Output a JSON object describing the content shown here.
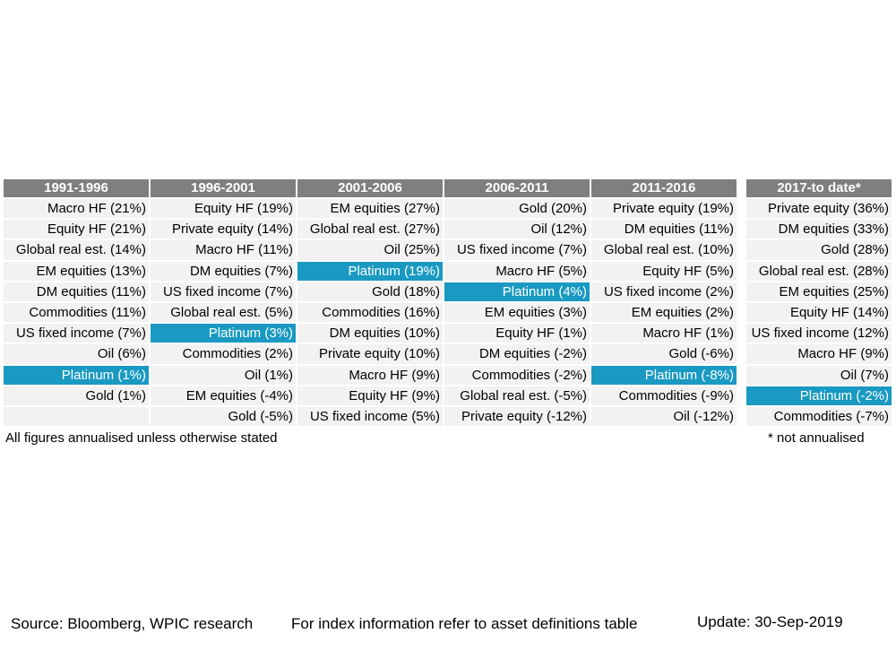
{
  "chart_data": {
    "type": "table",
    "highlight_color": "#1a9ac2",
    "header_color": "#7f7f7f",
    "highlight_asset": "Platinum",
    "columns": [
      {
        "header": "1991-1996",
        "rows": [
          {
            "label": "Macro HF (21%)",
            "asset": "Macro HF",
            "value": 21
          },
          {
            "label": "Equity HF (21%)",
            "asset": "Equity HF",
            "value": 21
          },
          {
            "label": "Global real est. (14%)",
            "asset": "Global real est.",
            "value": 14
          },
          {
            "label": "EM equities (13%)",
            "asset": "EM equities",
            "value": 13
          },
          {
            "label": "DM equities (11%)",
            "asset": "DM equities",
            "value": 11
          },
          {
            "label": "Commodities (11%)",
            "asset": "Commodities",
            "value": 11
          },
          {
            "label": "US fixed income (7%)",
            "asset": "US fixed income",
            "value": 7
          },
          {
            "label": "Oil (6%)",
            "asset": "Oil",
            "value": 6
          },
          {
            "label": "Platinum (1%)",
            "asset": "Platinum",
            "value": 1
          },
          {
            "label": "Gold (1%)",
            "asset": "Gold",
            "value": 1
          },
          {
            "label": "",
            "asset": "",
            "value": null
          }
        ]
      },
      {
        "header": "1996-2001",
        "rows": [
          {
            "label": "Equity HF (19%)",
            "asset": "Equity HF",
            "value": 19
          },
          {
            "label": "Private equity (14%)",
            "asset": "Private equity",
            "value": 14
          },
          {
            "label": "Macro HF (11%)",
            "asset": "Macro HF",
            "value": 11
          },
          {
            "label": "DM equities (7%)",
            "asset": "DM equities",
            "value": 7
          },
          {
            "label": "US fixed income (7%)",
            "asset": "US fixed income",
            "value": 7
          },
          {
            "label": "Global real est. (5%)",
            "asset": "Global real est.",
            "value": 5
          },
          {
            "label": "Platinum (3%)",
            "asset": "Platinum",
            "value": 3
          },
          {
            "label": "Commodities (2%)",
            "asset": "Commodities",
            "value": 2
          },
          {
            "label": "Oil (1%)",
            "asset": "Oil",
            "value": 1
          },
          {
            "label": "EM equities (-4%)",
            "asset": "EM equities",
            "value": -4
          },
          {
            "label": "Gold (-5%)",
            "asset": "Gold",
            "value": -5
          }
        ]
      },
      {
        "header": "2001-2006",
        "rows": [
          {
            "label": "EM equities (27%)",
            "asset": "EM equities",
            "value": 27
          },
          {
            "label": "Global real est. (27%)",
            "asset": "Global real est.",
            "value": 27
          },
          {
            "label": "Oil (25%)",
            "asset": "Oil",
            "value": 25
          },
          {
            "label": "Platinum (19%)",
            "asset": "Platinum",
            "value": 19
          },
          {
            "label": "Gold (18%)",
            "asset": "Gold",
            "value": 18
          },
          {
            "label": "Commodities (16%)",
            "asset": "Commodities",
            "value": 16
          },
          {
            "label": "DM equities (10%)",
            "asset": "DM equities",
            "value": 10
          },
          {
            "label": "Private equity (10%)",
            "asset": "Private equity",
            "value": 10
          },
          {
            "label": "Macro HF (9%)",
            "asset": "Macro HF",
            "value": 9
          },
          {
            "label": "Equity HF (9%)",
            "asset": "Equity HF",
            "value": 9
          },
          {
            "label": "US fixed income (5%)",
            "asset": "US fixed income",
            "value": 5
          }
        ]
      },
      {
        "header": "2006-2011",
        "rows": [
          {
            "label": "Gold (20%)",
            "asset": "Gold",
            "value": 20
          },
          {
            "label": "Oil (12%)",
            "asset": "Oil",
            "value": 12
          },
          {
            "label": "US fixed income (7%)",
            "asset": "US fixed income",
            "value": 7
          },
          {
            "label": "Macro HF (5%)",
            "asset": "Macro HF",
            "value": 5
          },
          {
            "label": "Platinum (4%)",
            "asset": "Platinum",
            "value": 4
          },
          {
            "label": "EM equities (3%)",
            "asset": "EM equities",
            "value": 3
          },
          {
            "label": "Equity HF (1%)",
            "asset": "Equity HF",
            "value": 1
          },
          {
            "label": "DM equities (-2%)",
            "asset": "DM equities",
            "value": -2
          },
          {
            "label": "Commodities (-2%)",
            "asset": "Commodities",
            "value": -2
          },
          {
            "label": "Global real est. (-5%)",
            "asset": "Global real est.",
            "value": -5
          },
          {
            "label": "Private equity (-12%)",
            "asset": "Private equity",
            "value": -12
          }
        ]
      },
      {
        "header": "2011-2016",
        "rows": [
          {
            "label": "Private equity (19%)",
            "asset": "Private equity",
            "value": 19
          },
          {
            "label": "DM equities (11%)",
            "asset": "DM equities",
            "value": 11
          },
          {
            "label": "Global real est. (10%)",
            "asset": "Global real est.",
            "value": 10
          },
          {
            "label": "Equity HF (5%)",
            "asset": "Equity HF",
            "value": 5
          },
          {
            "label": "US fixed income (2%)",
            "asset": "US fixed income",
            "value": 2
          },
          {
            "label": "EM equities (2%)",
            "asset": "EM equities",
            "value": 2
          },
          {
            "label": "Macro HF (1%)",
            "asset": "Macro HF",
            "value": 1
          },
          {
            "label": "Gold (-6%)",
            "asset": "Gold",
            "value": -6
          },
          {
            "label": "Platinum (-8%)",
            "asset": "Platinum",
            "value": -8
          },
          {
            "label": "Commodities (-9%)",
            "asset": "Commodities",
            "value": -9
          },
          {
            "label": "Oil (-12%)",
            "asset": "Oil",
            "value": -12
          }
        ]
      },
      {
        "header": "2017-to date*",
        "rows": [
          {
            "label": "Private equity (36%)",
            "asset": "Private equity",
            "value": 36
          },
          {
            "label": "DM equities (33%)",
            "asset": "DM equities",
            "value": 33
          },
          {
            "label": "Gold (28%)",
            "asset": "Gold",
            "value": 28
          },
          {
            "label": "Global real est. (28%)",
            "asset": "Global real est.",
            "value": 28
          },
          {
            "label": "EM equities (25%)",
            "asset": "EM equities",
            "value": 25
          },
          {
            "label": "Equity HF (14%)",
            "asset": "Equity HF",
            "value": 14
          },
          {
            "label": "US fixed income (12%)",
            "asset": "US fixed income",
            "value": 12
          },
          {
            "label": "Macro HF (9%)",
            "asset": "Macro HF",
            "value": 9
          },
          {
            "label": "Oil (7%)",
            "asset": "Oil",
            "value": 7
          },
          {
            "label": "Platinum (-2%)",
            "asset": "Platinum",
            "value": -2
          },
          {
            "label": "Commodities (-7%)",
            "asset": "Commodities",
            "value": -7
          }
        ]
      }
    ]
  },
  "notes": {
    "annualised": "All figures annualised unless otherwise stated",
    "not_annualised": "* not annualised"
  },
  "footer": {
    "source": "Source: Bloomberg, WPIC research",
    "index_info": "For index information refer to asset definitions table",
    "update": "Update: 30-Sep-2019"
  }
}
